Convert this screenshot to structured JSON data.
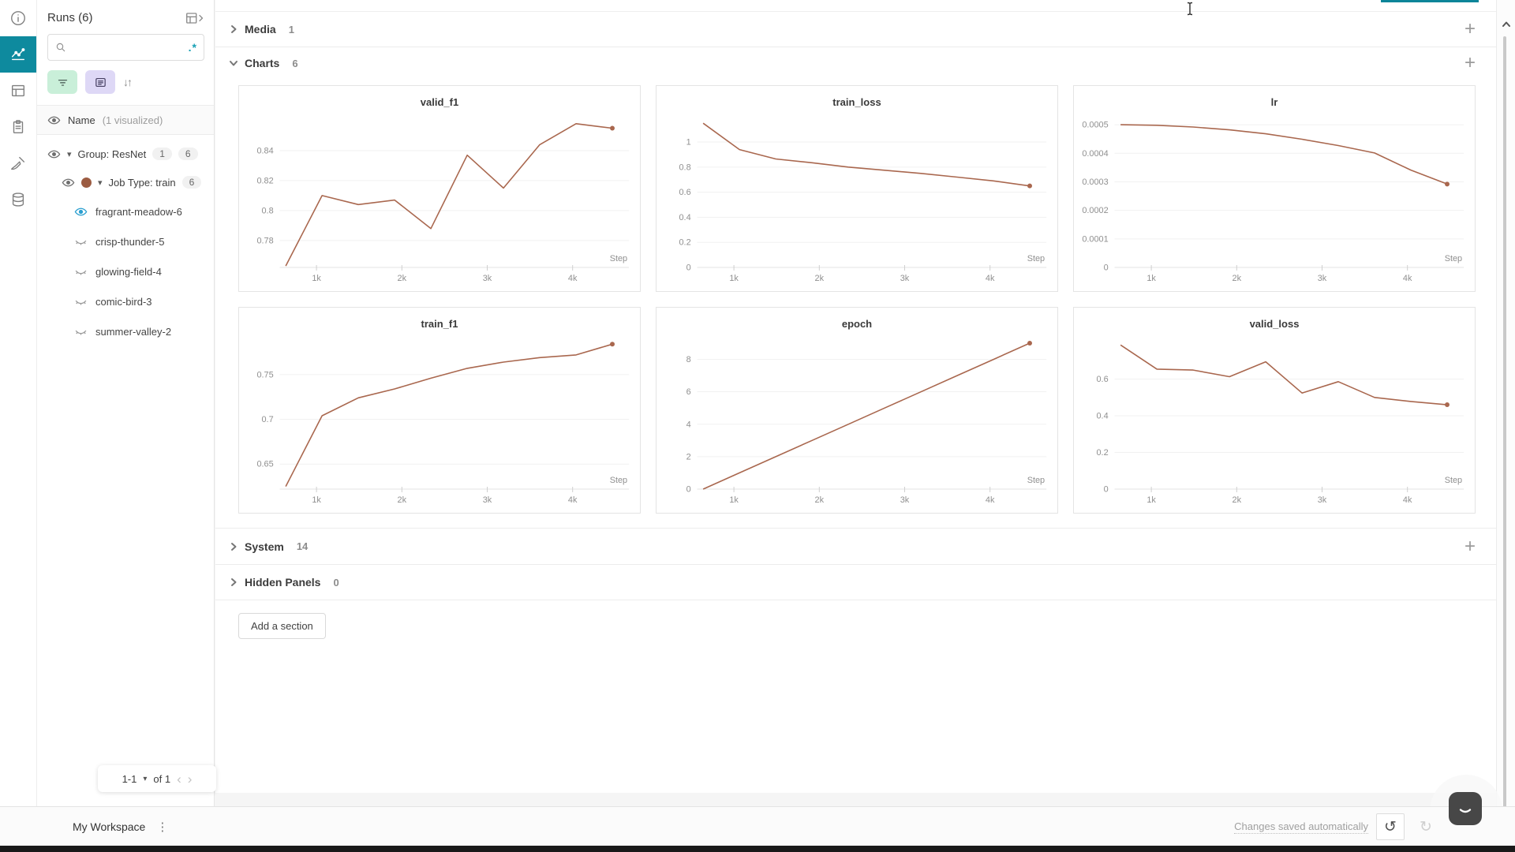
{
  "colors": {
    "accent": "#0e8a9e",
    "run_line": "#a9674e",
    "job_dot": "#9c5c42",
    "visible_eye": "#2a9fd0"
  },
  "nav_rail": {
    "items": [
      {
        "icon": "info-icon"
      },
      {
        "icon": "line-chart-icon",
        "active": true
      },
      {
        "icon": "panels-icon"
      },
      {
        "icon": "reports-icon"
      },
      {
        "icon": "sweeps-icon"
      },
      {
        "icon": "artifacts-icon"
      }
    ]
  },
  "sidebar": {
    "title": "Runs (6)",
    "search": {
      "value": "",
      "placeholder": "",
      "regex_label": ".*"
    },
    "name_row": {
      "label": "Name",
      "annotation": "(1 visualized)"
    },
    "tree": {
      "group": {
        "label": "Group: ResNet",
        "badge1": "1",
        "badge2": "6"
      },
      "job": {
        "label": "Job Type: train",
        "badge": "6"
      },
      "runs": [
        {
          "name": "fragrant-meadow-6",
          "visible": true
        },
        {
          "name": "crisp-thunder-5",
          "visible": false
        },
        {
          "name": "glowing-field-4",
          "visible": false
        },
        {
          "name": "comic-bird-3",
          "visible": false
        },
        {
          "name": "summer-valley-2",
          "visible": false
        }
      ]
    },
    "pagination": {
      "range": "1-1",
      "of_label": "of 1"
    }
  },
  "sections": {
    "media": {
      "label": "Media",
      "count": "1"
    },
    "charts": {
      "label": "Charts",
      "count": "6"
    },
    "system": {
      "label": "System",
      "count": "14"
    },
    "hidden": {
      "label": "Hidden Panels",
      "count": "0"
    },
    "add_section_label": "Add a section"
  },
  "footer": {
    "workspace": "My Workspace",
    "autosave": "Changes saved automatically"
  },
  "chart_data": [
    {
      "type": "line",
      "title": "valid_f1",
      "xlabel": "Step",
      "x": [
        640,
        1065,
        1490,
        1915,
        2340,
        2765,
        3190,
        3615,
        4040,
        4465
      ],
      "values": [
        0.763,
        0.81,
        0.804,
        0.807,
        0.788,
        0.837,
        0.815,
        0.844,
        0.858,
        0.855
      ],
      "xlim": [
        570,
        4660
      ],
      "ylim": [
        0.762,
        0.86
      ],
      "xtick_values": [
        1000,
        2000,
        3000,
        4000
      ],
      "xtick_labels": [
        "1k",
        "2k",
        "3k",
        "4k"
      ],
      "ytick_values": [
        0.78,
        0.8,
        0.82,
        0.84
      ],
      "ytick_labels": [
        "0.78",
        "0.8",
        "0.82",
        "0.84"
      ],
      "legend": "hidden",
      "grid": "horizontal",
      "end_dot": true
    },
    {
      "type": "line",
      "title": "train_loss",
      "xlabel": "Step",
      "x": [
        640,
        1065,
        1490,
        1915,
        2340,
        2765,
        3190,
        3615,
        4040,
        4465
      ],
      "values": [
        1.15,
        0.94,
        0.865,
        0.835,
        0.8,
        0.775,
        0.75,
        0.72,
        0.69,
        0.65
      ],
      "xlim": [
        570,
        4660
      ],
      "ylim": [
        0,
        1.17
      ],
      "xtick_values": [
        1000,
        2000,
        3000,
        4000
      ],
      "xtick_labels": [
        "1k",
        "2k",
        "3k",
        "4k"
      ],
      "ytick_values": [
        0,
        0.2,
        0.4,
        0.6,
        0.8,
        1
      ],
      "ytick_labels": [
        "0",
        "0.2",
        "0.4",
        "0.6",
        "0.8",
        "1"
      ],
      "legend": "hidden",
      "grid": "horizontal",
      "end_dot": true
    },
    {
      "type": "line",
      "title": "lr",
      "xlabel": "Step",
      "x": [
        640,
        1065,
        1490,
        1915,
        2340,
        2765,
        3190,
        3615,
        4040,
        4465
      ],
      "values": [
        0.0005,
        0.000498,
        0.000492,
        0.000482,
        0.000468,
        0.000449,
        0.000427,
        0.000401,
        0.000341,
        0.000292
      ],
      "xlim": [
        570,
        4660
      ],
      "ylim": [
        0,
        0.000514
      ],
      "xtick_values": [
        1000,
        2000,
        3000,
        4000
      ],
      "xtick_labels": [
        "1k",
        "2k",
        "3k",
        "4k"
      ],
      "ytick_values": [
        0,
        0.0001,
        0.0002,
        0.0003,
        0.0004,
        0.0005
      ],
      "ytick_labels": [
        "0",
        "0.0001",
        "0.0002",
        "0.0003",
        "0.0004",
        "0.0005"
      ],
      "legend": "hidden",
      "grid": "horizontal",
      "end_dot": true
    },
    {
      "type": "line",
      "title": "train_f1",
      "xlabel": "Step",
      "x": [
        640,
        1065,
        1490,
        1915,
        2340,
        2765,
        3190,
        3615,
        4040,
        4465
      ],
      "values": [
        0.625,
        0.704,
        0.724,
        0.734,
        0.746,
        0.757,
        0.764,
        0.769,
        0.772,
        0.784
      ],
      "xlim": [
        570,
        4660
      ],
      "ylim": [
        0.622,
        0.786
      ],
      "xtick_values": [
        1000,
        2000,
        3000,
        4000
      ],
      "xtick_labels": [
        "1k",
        "2k",
        "3k",
        "4k"
      ],
      "ytick_values": [
        0.65,
        0.7,
        0.75
      ],
      "ytick_labels": [
        "0.65",
        "0.7",
        "0.75"
      ],
      "legend": "hidden",
      "grid": "horizontal",
      "end_dot": true
    },
    {
      "type": "line",
      "title": "epoch",
      "xlabel": "Step",
      "x": [
        640,
        1065,
        1490,
        1915,
        2340,
        2765,
        3190,
        3615,
        4040,
        4465
      ],
      "values": [
        0,
        1,
        2,
        3,
        4,
        5,
        6,
        7,
        8,
        9
      ],
      "xlim": [
        570,
        4660
      ],
      "ylim": [
        0,
        9.05
      ],
      "xtick_values": [
        1000,
        2000,
        3000,
        4000
      ],
      "xtick_labels": [
        "1k",
        "2k",
        "3k",
        "4k"
      ],
      "ytick_values": [
        0,
        2,
        4,
        6,
        8
      ],
      "ytick_labels": [
        "0",
        "2",
        "4",
        "6",
        "8"
      ],
      "legend": "hidden",
      "grid": "horizontal",
      "end_dot": true
    },
    {
      "type": "line",
      "title": "valid_loss",
      "xlabel": "Step",
      "x": [
        640,
        1065,
        1490,
        1915,
        2340,
        2765,
        3190,
        3615,
        4040,
        4465
      ],
      "values": [
        0.786,
        0.654,
        0.649,
        0.613,
        0.694,
        0.524,
        0.586,
        0.5,
        0.478,
        0.46
      ],
      "xlim": [
        570,
        4660
      ],
      "ylim": [
        0,
        0.8
      ],
      "xtick_values": [
        1000,
        2000,
        3000,
        4000
      ],
      "xtick_labels": [
        "1k",
        "2k",
        "3k",
        "4k"
      ],
      "ytick_values": [
        0,
        0.2,
        0.4,
        0.6
      ],
      "ytick_labels": [
        "0",
        "0.2",
        "0.4",
        "0.6"
      ],
      "legend": "hidden",
      "grid": "horizontal",
      "end_dot": true
    }
  ],
  "scrollbar": {
    "up": "^",
    "down": "v"
  }
}
